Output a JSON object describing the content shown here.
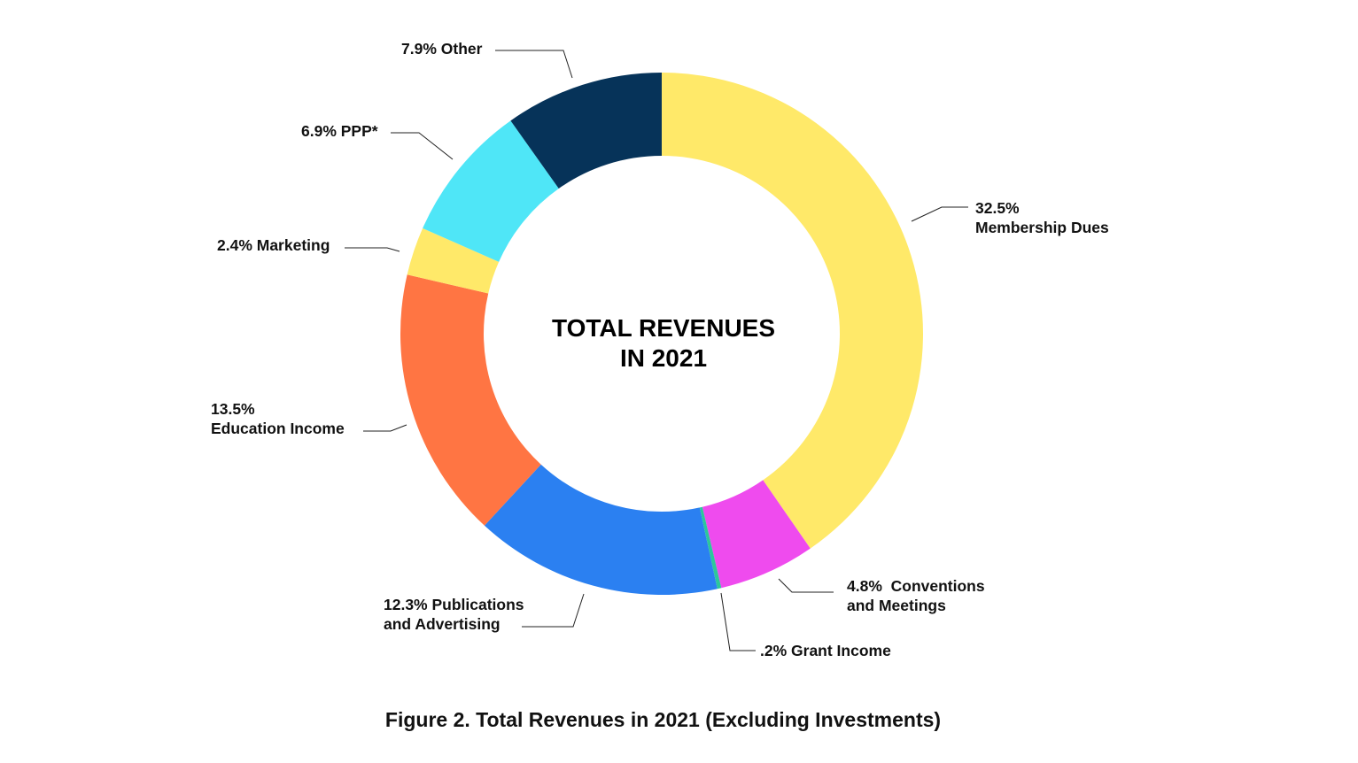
{
  "chart_data": {
    "type": "pie",
    "variant": "donut",
    "center_label": [
      "TOTAL REVENUES",
      "IN 2021"
    ],
    "caption": "Figure 2. Total Revenues in 2021 (Excluding Investments)",
    "slices": [
      {
        "name": "Membership Dues",
        "value": 32.5,
        "color": "#FFE969",
        "label": [
          "32.5%",
          "Membership Dues"
        ]
      },
      {
        "name": "Conventions and Meetings",
        "value": 4.8,
        "color": "#EF4BEE",
        "label": [
          "4.8%  Conventions",
          "and Meetings"
        ]
      },
      {
        "name": "Grant Income",
        "value": 0.2,
        "color": "#2CC79B",
        "label": [
          ".2% Grant Income"
        ]
      },
      {
        "name": "Publications and Advertising",
        "value": 12.3,
        "color": "#2B80F1",
        "label": [
          "12.3% Publications",
          "and Advertising"
        ]
      },
      {
        "name": "Education Income",
        "value": 13.5,
        "color": "#FF7543",
        "label": [
          "13.5%",
          "Education Income"
        ]
      },
      {
        "name": "Marketing",
        "value": 2.4,
        "color": "#FFE969",
        "label": [
          "2.4% Marketing"
        ]
      },
      {
        "name": "PPP*",
        "value": 6.9,
        "color": "#4FE6F7",
        "label": [
          "6.9% PPP*"
        ]
      },
      {
        "name": "Other",
        "value": 7.9,
        "color": "#063359",
        "label": [
          "7.9% Other"
        ]
      }
    ]
  }
}
